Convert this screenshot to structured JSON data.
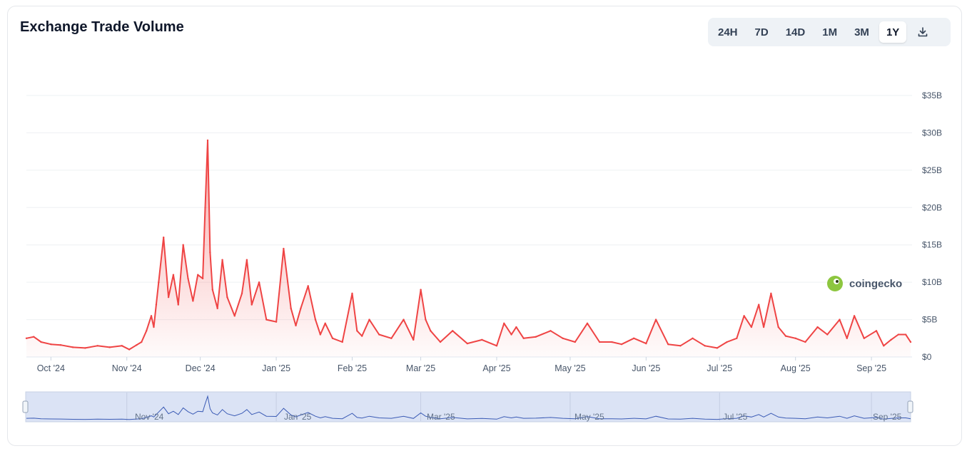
{
  "header": {
    "title": "Exchange Trade Volume"
  },
  "range_tabs": [
    {
      "label": "24H",
      "active": false
    },
    {
      "label": "7D",
      "active": false
    },
    {
      "label": "14D",
      "active": false
    },
    {
      "label": "1M",
      "active": false
    },
    {
      "label": "3M",
      "active": false
    },
    {
      "label": "1Y",
      "active": true
    }
  ],
  "download": {
    "icon": "download-icon"
  },
  "watermark": {
    "text": "coingecko",
    "icon": "gecko-logo-icon"
  },
  "navigator": {
    "labels": [
      "Nov '24",
      "Jan '25",
      "Mar '25",
      "May '25",
      "Jul '25",
      "Sep '25"
    ]
  },
  "colors": {
    "line": "#ef4444",
    "fill": "#fecaca",
    "grid": "#eef0f3",
    "navigator_fill": "#dbe3f5",
    "navigator_line": "#3b5bb5"
  },
  "chart_data": {
    "type": "area",
    "ylim": [
      0,
      35
    ],
    "y_ticks": [
      0,
      5,
      10,
      15,
      20,
      25,
      30,
      35
    ],
    "y_tick_labels": [
      "$0",
      "$5B",
      "$10B",
      "$15B",
      "$20B",
      "$25B",
      "$30B",
      "$35B"
    ],
    "x_tick_labels": [
      "Oct '24",
      "Nov '24",
      "Dec '24",
      "Jan '25",
      "Feb '25",
      "Mar '25",
      "Apr '25",
      "May '25",
      "Jun '25",
      "Jul '25",
      "Aug '25",
      "Sep '25"
    ],
    "x_tick_dates": [
      "2024-10-01",
      "2024-11-01",
      "2024-12-01",
      "2025-01-01",
      "2025-02-01",
      "2025-03-01",
      "2025-04-01",
      "2025-05-01",
      "2025-06-01",
      "2025-07-01",
      "2025-08-01",
      "2025-09-01"
    ],
    "series": [
      {
        "x": [
          "2024-09-21",
          "2024-09-24",
          "2024-09-27",
          "2024-10-01",
          "2024-10-05",
          "2024-10-10",
          "2024-10-15",
          "2024-10-20",
          "2024-10-25",
          "2024-10-30",
          "2024-11-02",
          "2024-11-05",
          "2024-11-07",
          "2024-11-09",
          "2024-11-11",
          "2024-11-12",
          "2024-11-13",
          "2024-11-14",
          "2024-11-16",
          "2024-11-18",
          "2024-11-20",
          "2024-11-22",
          "2024-11-24",
          "2024-11-26",
          "2024-11-28",
          "2024-11-30",
          "2024-12-02",
          "2024-12-03",
          "2024-12-04",
          "2024-12-05",
          "2024-12-06",
          "2024-12-08",
          "2024-12-10",
          "2024-12-12",
          "2024-12-15",
          "2024-12-18",
          "2024-12-20",
          "2024-12-22",
          "2024-12-25",
          "2024-12-28",
          "2025-01-01",
          "2025-01-04",
          "2025-01-07",
          "2025-01-09",
          "2025-01-11",
          "2025-01-14",
          "2025-01-17",
          "2025-01-19",
          "2025-01-21",
          "2025-01-24",
          "2025-01-28",
          "2025-02-01",
          "2025-02-03",
          "2025-02-05",
          "2025-02-08",
          "2025-02-12",
          "2025-02-17",
          "2025-02-22",
          "2025-02-26",
          "2025-03-01",
          "2025-03-03",
          "2025-03-05",
          "2025-03-09",
          "2025-03-14",
          "2025-03-20",
          "2025-03-26",
          "2025-04-01",
          "2025-04-04",
          "2025-04-07",
          "2025-04-09",
          "2025-04-12",
          "2025-04-17",
          "2025-04-23",
          "2025-04-28",
          "2025-05-03",
          "2025-05-08",
          "2025-05-13",
          "2025-05-18",
          "2025-05-22",
          "2025-05-27",
          "2025-06-01",
          "2025-06-05",
          "2025-06-10",
          "2025-06-15",
          "2025-06-20",
          "2025-06-25",
          "2025-06-30",
          "2025-07-04",
          "2025-07-08",
          "2025-07-11",
          "2025-07-14",
          "2025-07-17",
          "2025-07-19",
          "2025-07-22",
          "2025-07-25",
          "2025-07-28",
          "2025-08-01",
          "2025-08-05",
          "2025-08-10",
          "2025-08-14",
          "2025-08-19",
          "2025-08-22",
          "2025-08-25",
          "2025-08-29",
          "2025-09-03",
          "2025-09-06",
          "2025-09-09",
          "2025-09-12",
          "2025-09-15",
          "2025-09-17"
        ],
        "values": [
          2.5,
          2.7,
          2.0,
          1.7,
          1.6,
          1.3,
          1.2,
          1.5,
          1.3,
          1.5,
          1.0,
          1.6,
          2.0,
          3.5,
          5.5,
          4.0,
          7.0,
          10.0,
          16.0,
          8.0,
          11.0,
          7.0,
          15.0,
          10.5,
          7.5,
          11.0,
          10.5,
          20.0,
          29.0,
          14.0,
          9.0,
          6.5,
          13.0,
          8.0,
          5.5,
          8.5,
          13.0,
          7.0,
          10.0,
          5.0,
          4.7,
          14.5,
          6.5,
          4.2,
          6.5,
          9.5,
          5.0,
          3.0,
          4.5,
          2.5,
          2.0,
          8.5,
          3.5,
          2.8,
          5.0,
          3.0,
          2.5,
          5.0,
          2.3,
          9.0,
          5.0,
          3.5,
          2.0,
          3.5,
          1.8,
          2.3,
          1.5,
          4.5,
          3.0,
          4.0,
          2.5,
          2.7,
          3.5,
          2.5,
          2.0,
          4.5,
          2.0,
          2.0,
          1.7,
          2.5,
          1.8,
          5.0,
          1.7,
          1.5,
          2.5,
          1.5,
          1.2,
          2.0,
          2.5,
          5.5,
          4.0,
          7.0,
          4.0,
          8.5,
          4.0,
          2.8,
          2.5,
          2.0,
          4.0,
          3.0,
          5.0,
          2.5,
          5.5,
          2.5,
          3.5,
          1.5,
          2.3,
          3.0,
          3.0,
          2.0
        ]
      }
    ]
  }
}
